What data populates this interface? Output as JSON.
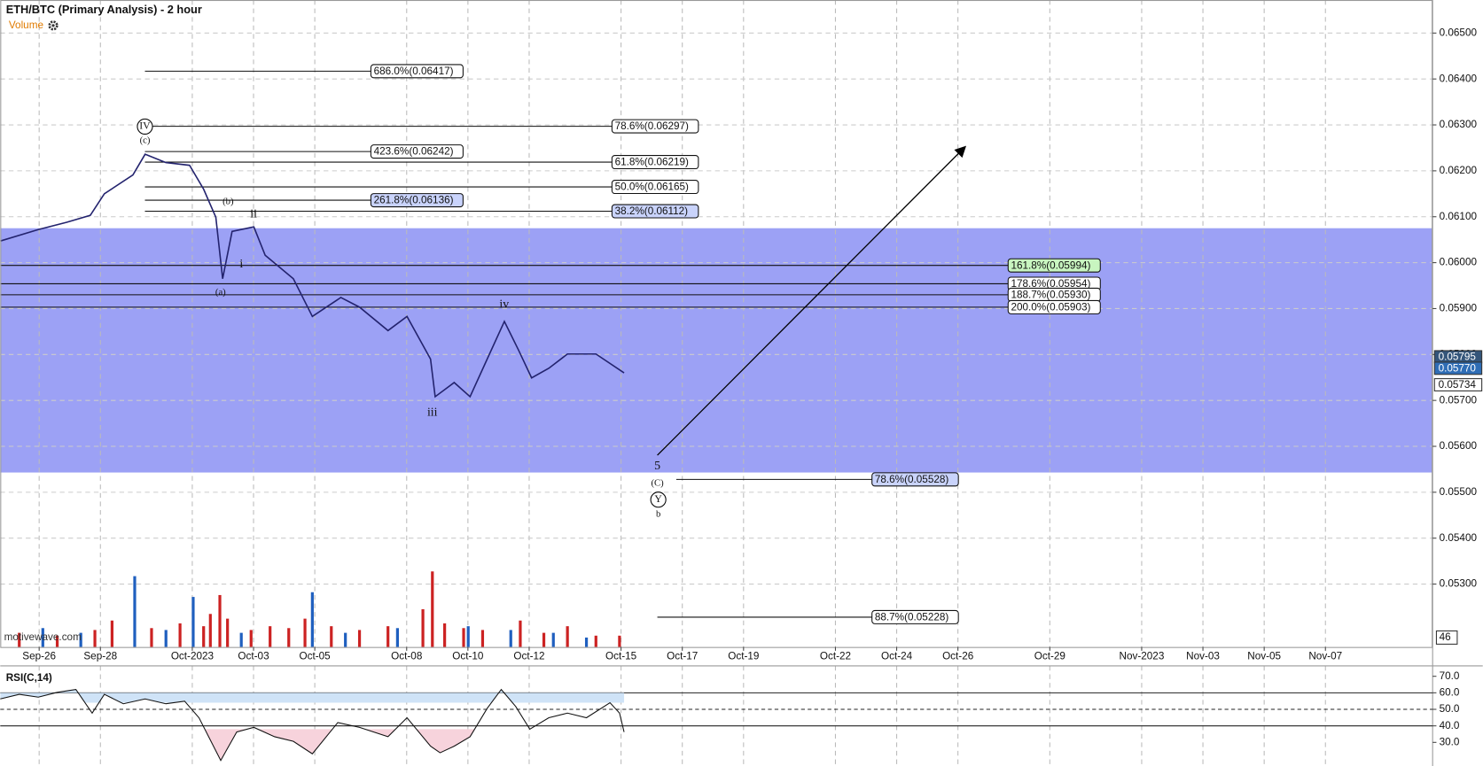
{
  "chart_data": {
    "type": "line",
    "title": "ETH/BTC (Primary Analysis) - 2 hour",
    "volume_label": "Volume",
    "watermark": "motivewave.com",
    "color": "#23236e",
    "xlim": [
      267.73,
      314.5
    ],
    "xticks": [
      {
        "value": 269,
        "label": "Sep-26"
      },
      {
        "value": 271,
        "label": "Sep-28"
      },
      {
        "value": 274,
        "label": "Oct-2023"
      },
      {
        "value": 276,
        "label": "Oct-03"
      },
      {
        "value": 278,
        "label": "Oct-05"
      },
      {
        "value": 281,
        "label": "Oct-08"
      },
      {
        "value": 283,
        "label": "Oct-10"
      },
      {
        "value": 285,
        "label": "Oct-12"
      },
      {
        "value": 288,
        "label": "Oct-15"
      },
      {
        "value": 290,
        "label": "Oct-17"
      },
      {
        "value": 292,
        "label": "Oct-19"
      },
      {
        "value": 295,
        "label": "Oct-22"
      },
      {
        "value": 297,
        "label": "Oct-24"
      },
      {
        "value": 299,
        "label": "Oct-26"
      },
      {
        "value": 302,
        "label": "Oct-29"
      },
      {
        "value": 305,
        "label": "Nov-2023"
      },
      {
        "value": 307,
        "label": "Nov-03"
      },
      {
        "value": 309,
        "label": "Nov-05"
      },
      {
        "value": 311,
        "label": "Nov-07"
      }
    ],
    "ylim": [
      0.05163,
      0.06572
    ],
    "yticks": [
      {
        "value": 0.053,
        "label": "0.05300"
      },
      {
        "value": 0.054,
        "label": "0.05400"
      },
      {
        "value": 0.055,
        "label": "0.05500"
      },
      {
        "value": 0.056,
        "label": "0.05600"
      },
      {
        "value": 0.057,
        "label": "0.05700"
      },
      {
        "value": 0.058,
        "label": "0.05800"
      },
      {
        "value": 0.059,
        "label": "0.05900"
      },
      {
        "value": 0.06,
        "label": "0.06000"
      },
      {
        "value": 0.061,
        "label": "0.06100"
      },
      {
        "value": 0.062,
        "label": "0.06200"
      },
      {
        "value": 0.063,
        "label": "0.06300"
      },
      {
        "value": 0.064,
        "label": "0.06400"
      },
      {
        "value": 0.065,
        "label": "0.06500"
      }
    ],
    "grid": true,
    "x": [
      267.73,
      268.97,
      269.9,
      270.67,
      271.13,
      272.06,
      272.46,
      273.14,
      273.91,
      274.37,
      274.77,
      274.99,
      275.3,
      276.01,
      276.38,
      277.3,
      277.92,
      278.85,
      279.46,
      280.39,
      281.01,
      281.78,
      281.93,
      282.55,
      283.07,
      283.63,
      284.19,
      284.65,
      285.08,
      285.64,
      286.25,
      287.18,
      288.1
    ],
    "values": [
      0.06047,
      0.06072,
      0.06088,
      0.06103,
      0.0615,
      0.06191,
      0.06236,
      0.06218,
      0.06212,
      0.0616,
      0.06099,
      0.05965,
      0.06068,
      0.06078,
      0.06016,
      0.05965,
      0.05883,
      0.05924,
      0.05903,
      0.05852,
      0.05883,
      0.0579,
      0.05708,
      0.05739,
      0.05708,
      0.0579,
      0.05872,
      0.0581,
      0.05749,
      0.0577,
      0.05801,
      0.05801,
      0.0576
    ],
    "zone": {
      "range": [
        0.05543,
        0.06075
      ],
      "color": "#979cf4"
    },
    "levels": [
      {
        "label": "686.0%(0.06417)",
        "value": 0.06417,
        "color": "#ffffff"
      },
      {
        "label": "78.6%(0.06297)",
        "value": 0.06297,
        "color": "#ffffff"
      },
      {
        "label": "423.6%(0.06242)",
        "value": 0.06242,
        "color": "#ffffff"
      },
      {
        "label": "61.8%(0.06219)",
        "value": 0.06219,
        "color": "#ffffff"
      },
      {
        "label": "50.0%(0.06165)",
        "value": 0.06165,
        "color": "#ffffff"
      },
      {
        "label": "261.8%(0.06136)",
        "value": 0.06136,
        "color": "#c9d3fb"
      },
      {
        "label": "38.2%(0.06112)",
        "value": 0.06112,
        "color": "#c9d3fb"
      },
      {
        "label": "161.8%(0.05994)",
        "value": 0.05994,
        "color": "#c8f5c0"
      },
      {
        "label": "178.6%(0.05954)",
        "value": 0.05954,
        "color": "#ffffff"
      },
      {
        "label": "188.7%(0.05930)",
        "value": 0.0593,
        "color": "#ffffff"
      },
      {
        "label": "200.0%(0.05903)",
        "value": 0.05903,
        "color": "#ffffff"
      },
      {
        "label": "78.6%(0.05528)",
        "value": 0.05528,
        "color": "#c9d3fb"
      },
      {
        "label": "88.7%(0.05228)",
        "value": 0.05228,
        "color": "#ffffff"
      }
    ],
    "wave_labels": [
      "IV",
      "(c)",
      "(b)",
      "ii",
      "i",
      "(a)",
      "iii",
      "iv",
      "5",
      "(C)",
      "Y",
      "b"
    ],
    "price_tags": [
      {
        "value": 0.05795,
        "label": "0.05795",
        "color": "#34557a"
      },
      {
        "value": 0.0577,
        "label": "0.05770",
        "color": "#2f6db5"
      },
      {
        "value": 0.05734,
        "label": "0.05734",
        "color": "#ffffff"
      }
    ],
    "volume": {
      "ylim": [
        0,
        100
      ],
      "axis_label": "46",
      "down": {
        "color": "#cc2222",
        "x": [
          268.35,
          269.59,
          270.82,
          271.38,
          272.67,
          273.6,
          274.37,
          274.59,
          274.9,
          275.15,
          275.92,
          276.54,
          277.15,
          277.68,
          278.54,
          279.46,
          280.39,
          281.53,
          281.84,
          282.24,
          282.86,
          283.48,
          284.71,
          285.48,
          286.25,
          287.18,
          287.95
        ],
        "values": [
          15,
          12,
          18,
          28,
          20,
          25,
          22,
          35,
          55,
          30,
          18,
          22,
          20,
          30,
          22,
          18,
          22,
          40,
          80,
          25,
          20,
          18,
          28,
          15,
          22,
          12,
          12
        ]
      },
      "up": {
        "color": "#1f5fbf",
        "x": [
          269.12,
          270.36,
          272.12,
          273.14,
          274.03,
          275.6,
          277.92,
          279,
          280.7,
          283.01,
          284.4,
          285.79,
          286.87
        ],
        "values": [
          20,
          15,
          75,
          18,
          53,
          15,
          58,
          15,
          20,
          22,
          18,
          15,
          10
        ]
      }
    },
    "rsi": {
      "title": "RSI(C,14)",
      "color": "#111111",
      "ylim": [
        15.7,
        76.3
      ],
      "yticks": [
        {
          "value": 70,
          "label": "70.0"
        },
        {
          "value": 60,
          "label": "60.0"
        },
        {
          "value": 50,
          "label": "50.0"
        },
        {
          "value": 40,
          "label": "40.0"
        },
        {
          "value": 30,
          "label": "30.0"
        }
      ],
      "lines": [
        60,
        50,
        40
      ],
      "x": [
        267.73,
        268.35,
        268.97,
        269.59,
        270.2,
        270.73,
        271.13,
        271.75,
        272.46,
        273.14,
        273.75,
        274.22,
        274.93,
        275.45,
        276.01,
        276.69,
        277.3,
        277.92,
        278.75,
        279.46,
        280.39,
        281.01,
        281.78,
        282.09,
        282.55,
        283.07,
        283.63,
        284.09,
        284.56,
        285.02,
        285.64,
        286.25,
        286.87,
        287.64,
        287.95,
        288.1
      ],
      "values": [
        56.3,
        59.1,
        57.4,
        60.3,
        62,
        47.7,
        59.1,
        53.4,
        56.3,
        53.4,
        54.9,
        44.9,
        19.1,
        36.3,
        39.1,
        33.4,
        30.6,
        23.1,
        42,
        39.1,
        33.4,
        44.9,
        27.7,
        23.7,
        27.7,
        33.4,
        50.6,
        62,
        51.7,
        38,
        44.9,
        47.7,
        44.9,
        54,
        47.7,
        36.3
      ]
    }
  }
}
